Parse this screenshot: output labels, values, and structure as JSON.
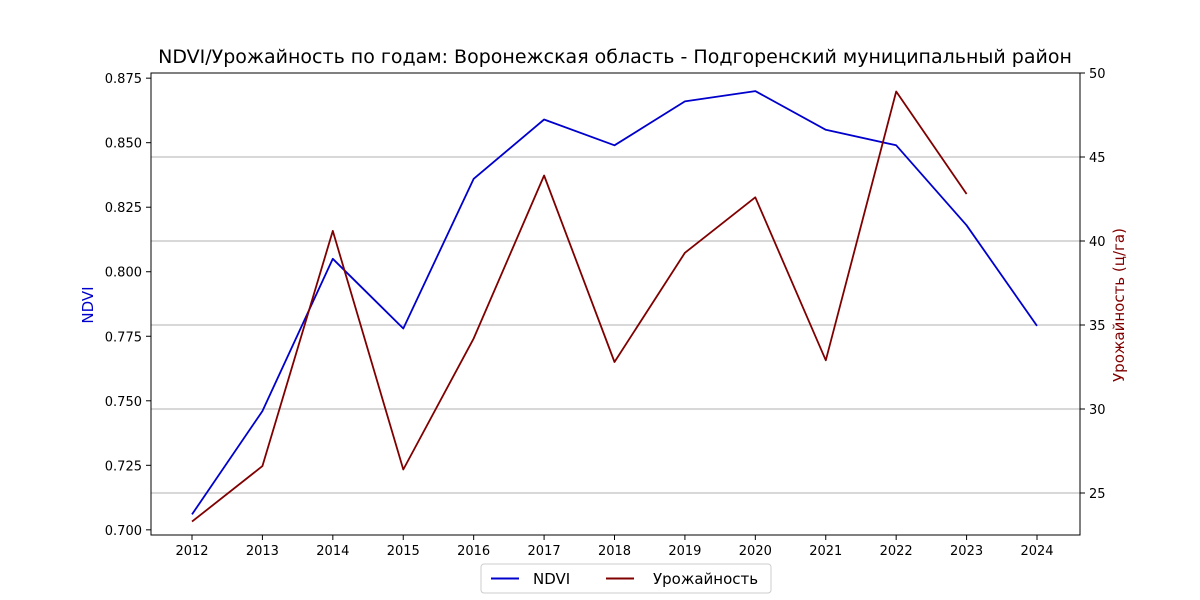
{
  "chart_data": {
    "type": "line",
    "title": "NDVI/Урожайность по годам: Воронежская область - Подгоренский муниципальный район",
    "x": [
      "2012",
      "2013",
      "2014",
      "2015",
      "2016",
      "2017",
      "2018",
      "2019",
      "2020",
      "2021",
      "2022",
      "2023",
      "2024"
    ],
    "y_left": {
      "label": "NDVI",
      "ylim": [
        0.698,
        0.877
      ],
      "ticks": [
        "0.700",
        "0.725",
        "0.750",
        "0.775",
        "0.800",
        "0.825",
        "0.850",
        "0.875"
      ],
      "color": "#0000cc"
    },
    "y_right": {
      "label": "Урожайность (ц/га)",
      "ylim": [
        22.5,
        50.0
      ],
      "ticks": [
        "25",
        "30",
        "35",
        "40",
        "45",
        "50"
      ],
      "color": "#800000"
    },
    "series": [
      {
        "name": "NDVI",
        "axis": "left",
        "color": "#0000cc",
        "values": [
          0.706,
          0.746,
          0.805,
          0.778,
          0.836,
          0.859,
          0.849,
          0.866,
          0.87,
          0.855,
          0.849,
          0.818,
          0.779
        ]
      },
      {
        "name": "Урожайность",
        "axis": "right",
        "color": "#800000",
        "values": [
          23.3,
          26.6,
          40.6,
          26.4,
          34.2,
          43.9,
          32.8,
          39.3,
          42.6,
          32.9,
          48.9,
          42.8,
          null
        ]
      }
    ],
    "grid": "horizontal lines on right axis ticks",
    "legend_position": "bottom-center"
  }
}
